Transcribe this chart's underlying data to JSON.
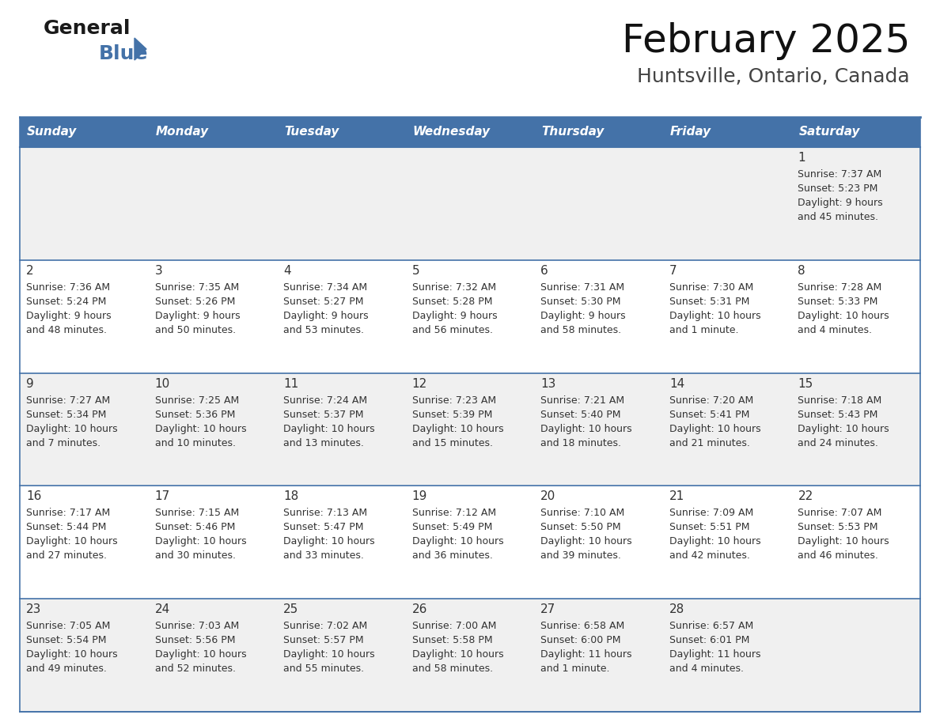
{
  "title": "February 2025",
  "subtitle": "Huntsville, Ontario, Canada",
  "header_bg_color": "#4472a8",
  "header_text_color": "#ffffff",
  "cell_bg_color_row0": "#f0f0f0",
  "cell_bg_color_row1": "#ffffff",
  "border_color": "#4472a8",
  "text_color": "#333333",
  "day_headers": [
    "Sunday",
    "Monday",
    "Tuesday",
    "Wednesday",
    "Thursday",
    "Friday",
    "Saturday"
  ],
  "days": [
    {
      "day": 1,
      "col": 6,
      "row": 0,
      "sunrise": "7:37 AM",
      "sunset": "5:23 PM",
      "daylight": "9 hours and 45 minutes."
    },
    {
      "day": 2,
      "col": 0,
      "row": 1,
      "sunrise": "7:36 AM",
      "sunset": "5:24 PM",
      "daylight": "9 hours and 48 minutes."
    },
    {
      "day": 3,
      "col": 1,
      "row": 1,
      "sunrise": "7:35 AM",
      "sunset": "5:26 PM",
      "daylight": "9 hours and 50 minutes."
    },
    {
      "day": 4,
      "col": 2,
      "row": 1,
      "sunrise": "7:34 AM",
      "sunset": "5:27 PM",
      "daylight": "9 hours and 53 minutes."
    },
    {
      "day": 5,
      "col": 3,
      "row": 1,
      "sunrise": "7:32 AM",
      "sunset": "5:28 PM",
      "daylight": "9 hours and 56 minutes."
    },
    {
      "day": 6,
      "col": 4,
      "row": 1,
      "sunrise": "7:31 AM",
      "sunset": "5:30 PM",
      "daylight": "9 hours and 58 minutes."
    },
    {
      "day": 7,
      "col": 5,
      "row": 1,
      "sunrise": "7:30 AM",
      "sunset": "5:31 PM",
      "daylight": "10 hours and 1 minute."
    },
    {
      "day": 8,
      "col": 6,
      "row": 1,
      "sunrise": "7:28 AM",
      "sunset": "5:33 PM",
      "daylight": "10 hours and 4 minutes."
    },
    {
      "day": 9,
      "col": 0,
      "row": 2,
      "sunrise": "7:27 AM",
      "sunset": "5:34 PM",
      "daylight": "10 hours and 7 minutes."
    },
    {
      "day": 10,
      "col": 1,
      "row": 2,
      "sunrise": "7:25 AM",
      "sunset": "5:36 PM",
      "daylight": "10 hours and 10 minutes."
    },
    {
      "day": 11,
      "col": 2,
      "row": 2,
      "sunrise": "7:24 AM",
      "sunset": "5:37 PM",
      "daylight": "10 hours and 13 minutes."
    },
    {
      "day": 12,
      "col": 3,
      "row": 2,
      "sunrise": "7:23 AM",
      "sunset": "5:39 PM",
      "daylight": "10 hours and 15 minutes."
    },
    {
      "day": 13,
      "col": 4,
      "row": 2,
      "sunrise": "7:21 AM",
      "sunset": "5:40 PM",
      "daylight": "10 hours and 18 minutes."
    },
    {
      "day": 14,
      "col": 5,
      "row": 2,
      "sunrise": "7:20 AM",
      "sunset": "5:41 PM",
      "daylight": "10 hours and 21 minutes."
    },
    {
      "day": 15,
      "col": 6,
      "row": 2,
      "sunrise": "7:18 AM",
      "sunset": "5:43 PM",
      "daylight": "10 hours and 24 minutes."
    },
    {
      "day": 16,
      "col": 0,
      "row": 3,
      "sunrise": "7:17 AM",
      "sunset": "5:44 PM",
      "daylight": "10 hours and 27 minutes."
    },
    {
      "day": 17,
      "col": 1,
      "row": 3,
      "sunrise": "7:15 AM",
      "sunset": "5:46 PM",
      "daylight": "10 hours and 30 minutes."
    },
    {
      "day": 18,
      "col": 2,
      "row": 3,
      "sunrise": "7:13 AM",
      "sunset": "5:47 PM",
      "daylight": "10 hours and 33 minutes."
    },
    {
      "day": 19,
      "col": 3,
      "row": 3,
      "sunrise": "7:12 AM",
      "sunset": "5:49 PM",
      "daylight": "10 hours and 36 minutes."
    },
    {
      "day": 20,
      "col": 4,
      "row": 3,
      "sunrise": "7:10 AM",
      "sunset": "5:50 PM",
      "daylight": "10 hours and 39 minutes."
    },
    {
      "day": 21,
      "col": 5,
      "row": 3,
      "sunrise": "7:09 AM",
      "sunset": "5:51 PM",
      "daylight": "10 hours and 42 minutes."
    },
    {
      "day": 22,
      "col": 6,
      "row": 3,
      "sunrise": "7:07 AM",
      "sunset": "5:53 PM",
      "daylight": "10 hours and 46 minutes."
    },
    {
      "day": 23,
      "col": 0,
      "row": 4,
      "sunrise": "7:05 AM",
      "sunset": "5:54 PM",
      "daylight": "10 hours and 49 minutes."
    },
    {
      "day": 24,
      "col": 1,
      "row": 4,
      "sunrise": "7:03 AM",
      "sunset": "5:56 PM",
      "daylight": "10 hours and 52 minutes."
    },
    {
      "day": 25,
      "col": 2,
      "row": 4,
      "sunrise": "7:02 AM",
      "sunset": "5:57 PM",
      "daylight": "10 hours and 55 minutes."
    },
    {
      "day": 26,
      "col": 3,
      "row": 4,
      "sunrise": "7:00 AM",
      "sunset": "5:58 PM",
      "daylight": "10 hours and 58 minutes."
    },
    {
      "day": 27,
      "col": 4,
      "row": 4,
      "sunrise": "6:58 AM",
      "sunset": "6:00 PM",
      "daylight": "11 hours and 1 minute."
    },
    {
      "day": 28,
      "col": 5,
      "row": 4,
      "sunrise": "6:57 AM",
      "sunset": "6:01 PM",
      "daylight": "11 hours and 4 minutes."
    }
  ],
  "num_rows": 5,
  "num_cols": 7,
  "fig_width": 11.88,
  "fig_height": 9.18,
  "dpi": 100,
  "title_fontsize": 36,
  "subtitle_fontsize": 18,
  "header_fontsize": 11,
  "day_num_fontsize": 11,
  "cell_text_fontsize": 9
}
